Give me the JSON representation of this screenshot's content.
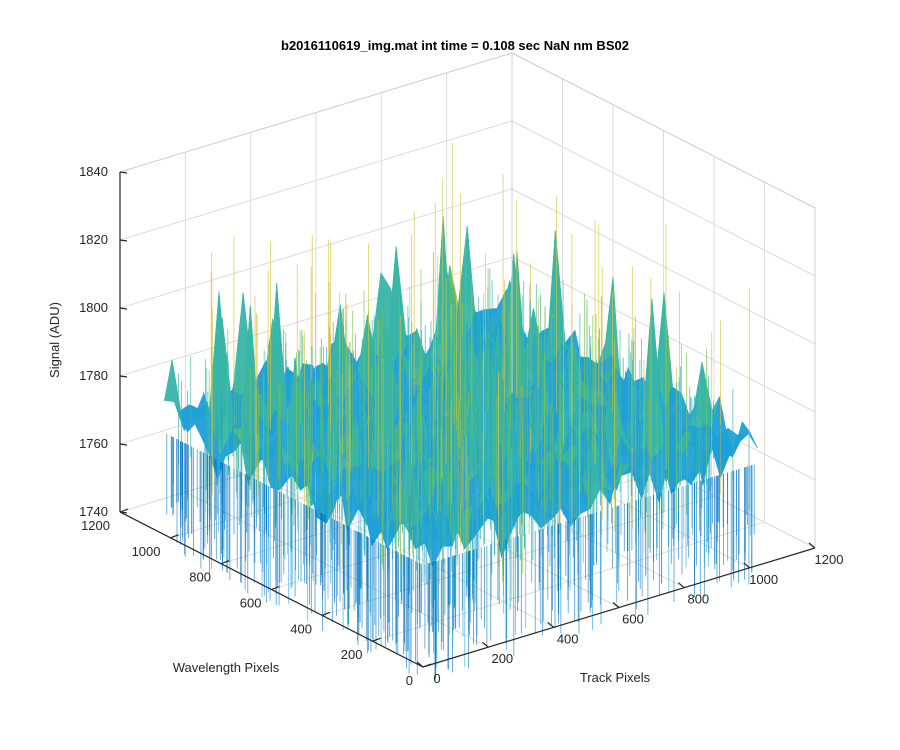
{
  "chart_data": {
    "type": "surface",
    "title": "b2016110619_img.mat int time = 0.108 sec  NaN nm BS02",
    "x_axis": {
      "label": "Track Pixels",
      "range": [
        0,
        1200
      ],
      "ticks": [
        0,
        200,
        400,
        600,
        800,
        1000,
        1200
      ],
      "tick_labels": [
        "0",
        "200",
        "400",
        "600",
        "800",
        "1000",
        "1200"
      ]
    },
    "y_axis": {
      "label": "Wavelength Pixels",
      "range": [
        0,
        1200
      ],
      "ticks": [
        0,
        200,
        400,
        600,
        800,
        1000,
        1200
      ],
      "tick_labels": [
        "0",
        "200",
        "400",
        "600",
        "800",
        "1000",
        "1200"
      ]
    },
    "z_axis": {
      "label": "Signal (ADU)",
      "range": [
        1740,
        1840
      ],
      "ticks": [
        1740,
        1760,
        1780,
        1800,
        1820,
        1840
      ],
      "tick_labels": [
        "1740",
        "1760",
        "1780",
        "1800",
        "1820",
        "1840"
      ]
    },
    "surface": {
      "x_extent": [
        0,
        1024
      ],
      "y_extent": [
        0,
        1024
      ],
      "mean_signal": 1775,
      "noise_range": [
        1750,
        1830
      ],
      "colormap": "parula",
      "colors": [
        "#0072bd",
        "#1fa0d8",
        "#38b5a8",
        "#7ec24f",
        "#d6c43a"
      ]
    },
    "grid": true,
    "box": "3d"
  }
}
